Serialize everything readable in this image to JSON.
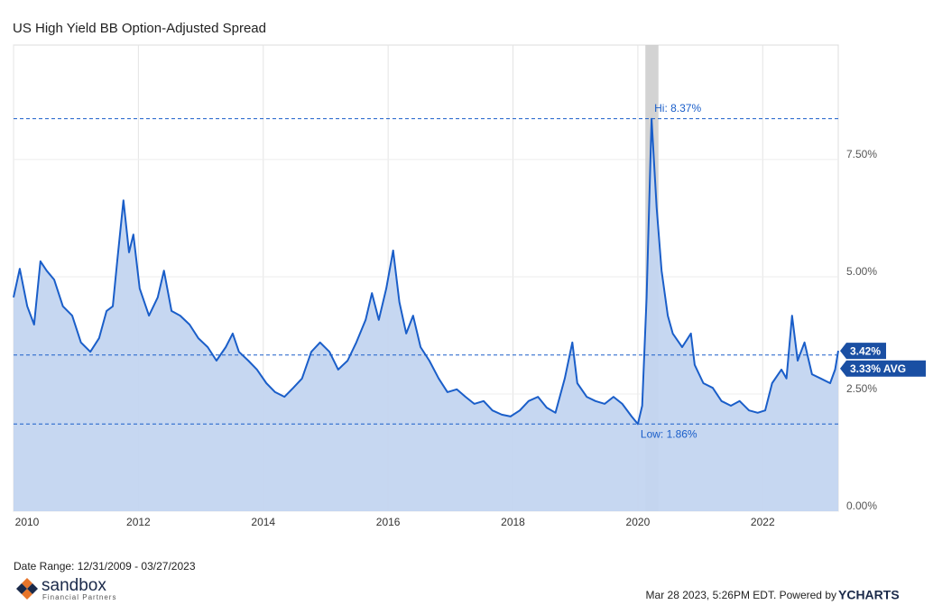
{
  "chart_data": {
    "type": "area",
    "title": "US High Yield BB Option-Adjusted Spread",
    "date_range": "Date Range: 12/31/2009 - 03/27/2023",
    "footer": "Mar 28 2023, 5:26PM EDT. Powered by",
    "brand": "YCHARTS",
    "logo": "sandbox",
    "logo_subtitle": "Financial Partners",
    "line_color": "#1a5ec9",
    "fill_color": "#c3d5f0",
    "grid": true,
    "x": [
      2010.0,
      2010.1,
      2010.22,
      2010.33,
      2010.43,
      2010.53,
      2010.65,
      2010.79,
      2010.94,
      2011.08,
      2011.23,
      2011.37,
      2011.49,
      2011.59,
      2011.66,
      2011.76,
      2011.85,
      2011.92,
      2012.02,
      2012.17,
      2012.31,
      2012.41,
      2012.53,
      2012.67,
      2012.82,
      2012.96,
      2013.11,
      2013.25,
      2013.4,
      2013.51,
      2013.61,
      2013.76,
      2013.9,
      2014.05,
      2014.19,
      2014.34,
      2014.48,
      2014.62,
      2014.77,
      2014.91,
      2015.06,
      2015.2,
      2015.35,
      2015.49,
      2015.64,
      2015.74,
      2015.85,
      2015.97,
      2016.08,
      2016.18,
      2016.29,
      2016.4,
      2016.52,
      2016.66,
      2016.81,
      2016.95,
      2017.1,
      2017.24,
      2017.38,
      2017.53,
      2017.67,
      2017.82,
      2017.96,
      2018.11,
      2018.25,
      2018.4,
      2018.54,
      2018.68,
      2018.83,
      2018.95,
      2019.03,
      2019.18,
      2019.32,
      2019.47,
      2019.61,
      2019.75,
      2019.9,
      2020.0,
      2020.07,
      2020.14,
      2020.22,
      2020.3,
      2020.38,
      2020.48,
      2020.56,
      2020.71,
      2020.85,
      2020.91,
      2021.05,
      2021.2,
      2021.34,
      2021.49,
      2021.63,
      2021.78,
      2021.92,
      2022.04,
      2022.15,
      2022.3,
      2022.38,
      2022.47,
      2022.56,
      2022.67,
      2022.79,
      2022.93,
      2023.08,
      2023.16,
      2023.21
    ],
    "values": [
      4.56,
      5.17,
      4.37,
      3.98,
      5.33,
      5.13,
      4.94,
      4.37,
      4.17,
      3.6,
      3.4,
      3.69,
      4.27,
      4.37,
      5.33,
      6.63,
      5.52,
      5.9,
      4.75,
      4.17,
      4.56,
      5.13,
      4.27,
      4.17,
      3.98,
      3.69,
      3.5,
      3.21,
      3.5,
      3.79,
      3.4,
      3.21,
      3.02,
      2.73,
      2.54,
      2.44,
      2.63,
      2.83,
      3.4,
      3.6,
      3.4,
      3.02,
      3.21,
      3.6,
      4.08,
      4.65,
      4.08,
      4.75,
      5.56,
      4.46,
      3.79,
      4.17,
      3.5,
      3.21,
      2.83,
      2.54,
      2.6,
      2.44,
      2.29,
      2.35,
      2.15,
      2.06,
      2.02,
      2.15,
      2.35,
      2.44,
      2.21,
      2.1,
      2.83,
      3.6,
      2.73,
      2.44,
      2.35,
      2.29,
      2.44,
      2.29,
      2.02,
      1.86,
      2.25,
      4.56,
      8.37,
      6.48,
      5.13,
      4.17,
      3.79,
      3.5,
      3.79,
      3.12,
      2.73,
      2.63,
      2.35,
      2.25,
      2.35,
      2.15,
      2.1,
      2.15,
      2.73,
      3.02,
      2.83,
      4.17,
      3.21,
      3.6,
      2.92,
      2.83,
      2.73,
      3.02,
      3.42
    ],
    "xlim": [
      2010.0,
      2023.21
    ],
    "xticks": [
      2010,
      2012,
      2014,
      2016,
      2018,
      2020,
      2022
    ],
    "ylim": [
      0,
      9.94
    ],
    "yticks": [
      {
        "value": 0,
        "label": "0.00%"
      },
      {
        "value": 2.5,
        "label": "2.50%"
      },
      {
        "value": 5,
        "label": "5.00%"
      },
      {
        "value": 7.5,
        "label": "7.50%"
      }
    ],
    "shaded_region": [
      2020.12,
      2020.33
    ],
    "reference_lines": [
      {
        "label": "Hi: 8.37%",
        "value": 8.37,
        "x": 2020.22
      },
      {
        "label": "3.33% AVG",
        "value": 3.33
      },
      {
        "label": "Low: 1.86%",
        "value": 1.86,
        "x": 2020.0
      }
    ],
    "last_value": {
      "label": "3.42%",
      "value": 3.42
    }
  }
}
